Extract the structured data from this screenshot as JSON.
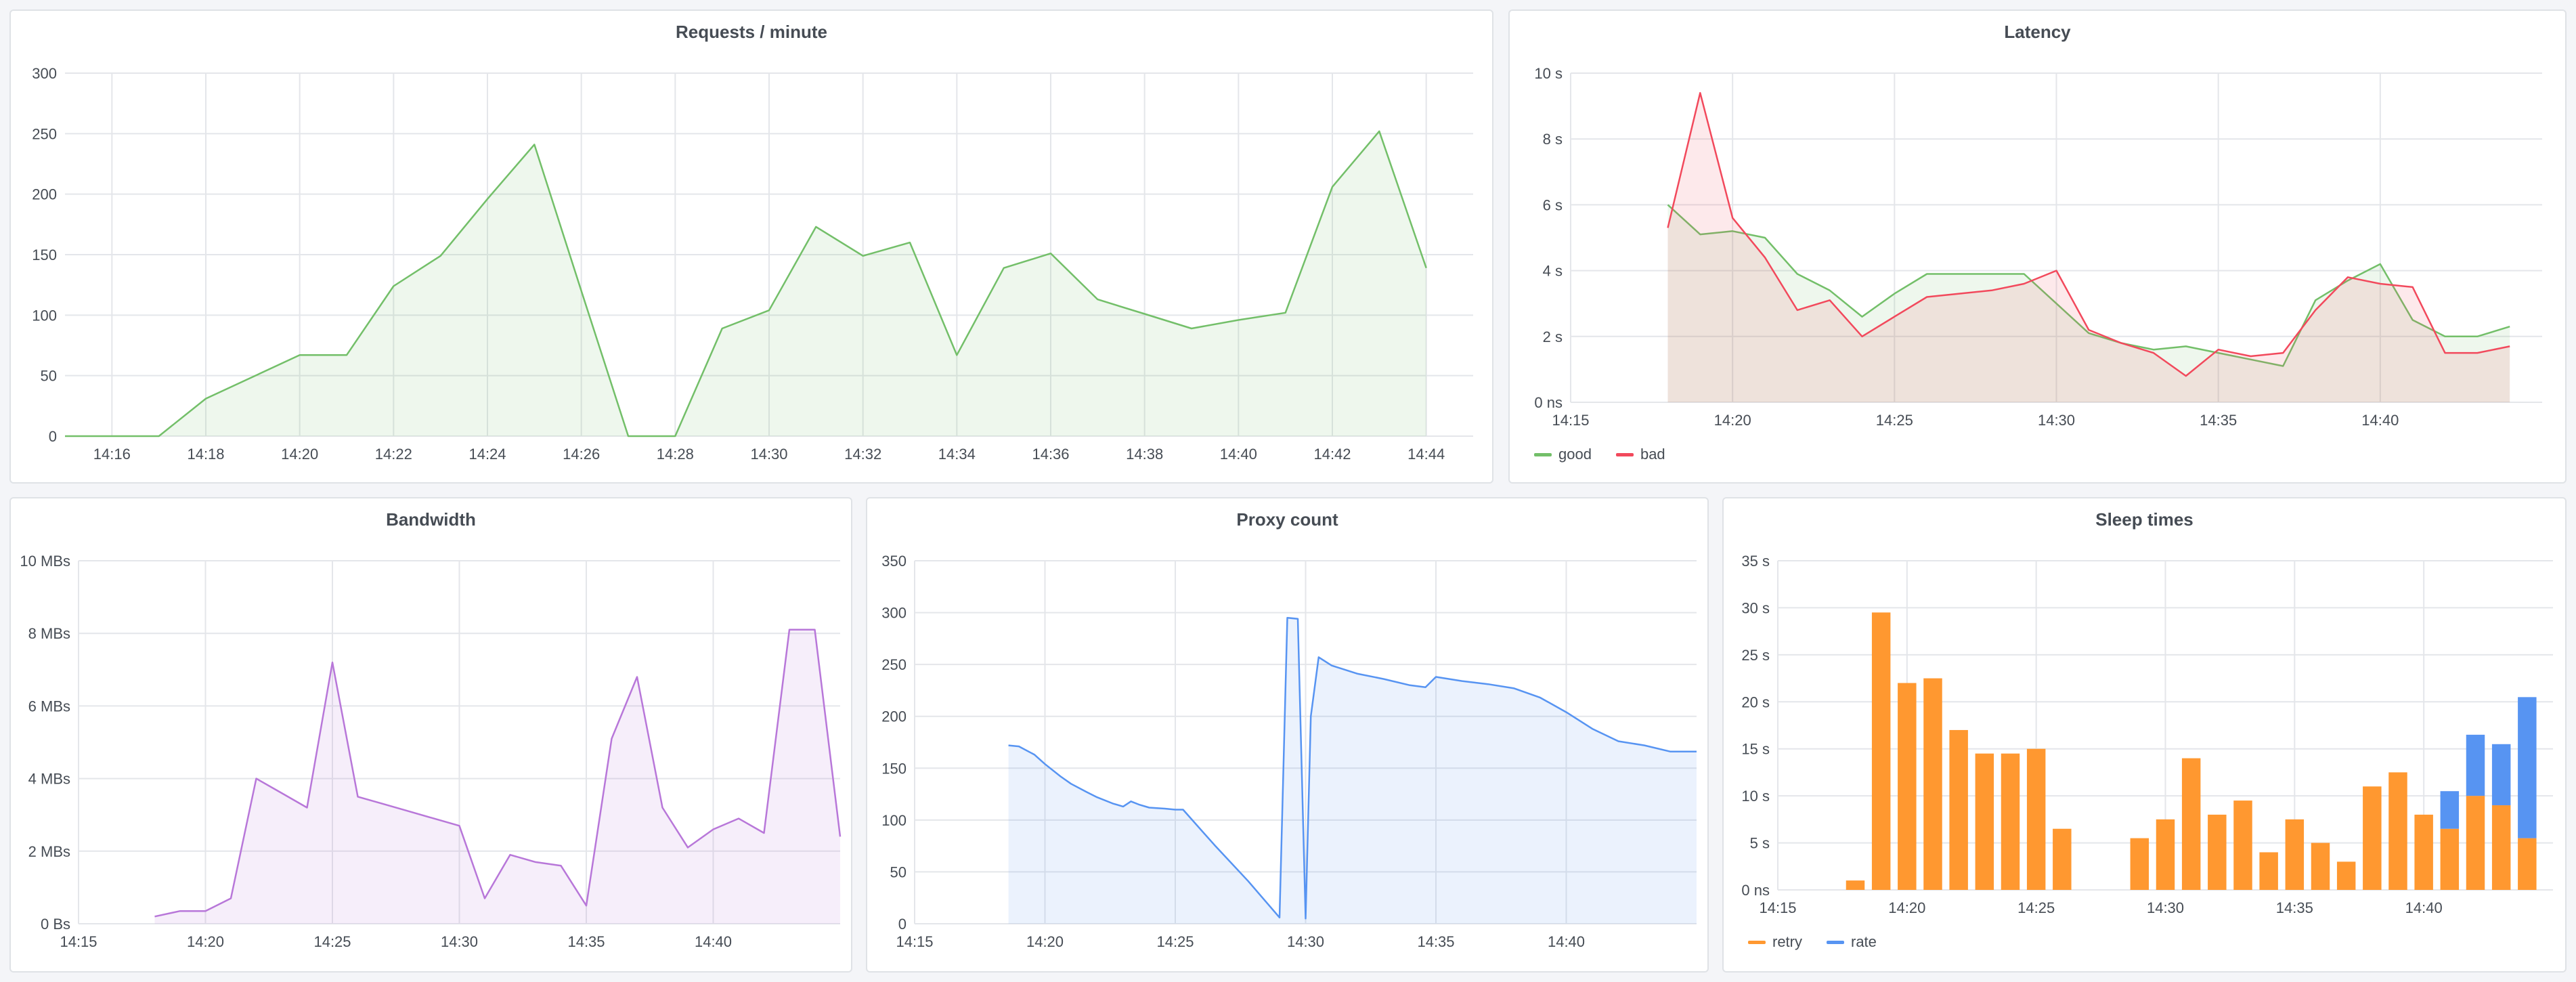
{
  "colors": {
    "green": "#73bf69",
    "red": "#f2495c",
    "purple": "#b877d9",
    "blue": "#5794f2",
    "orange": "#ff9830",
    "grid": "#e4e6ea",
    "axis_text": "#464c54"
  },
  "chart_data": [
    {
      "id": "requests",
      "type": "area",
      "title": "Requests / minute",
      "xlabel": "",
      "ylabel": "",
      "x_ticks": [
        "14:16",
        "14:18",
        "14:20",
        "14:22",
        "14:24",
        "14:26",
        "14:28",
        "14:30",
        "14:32",
        "14:34",
        "14:36",
        "14:38",
        "14:40",
        "14:42",
        "14:44"
      ],
      "x_range": [
        "14:15",
        "14:45"
      ],
      "y_ticks": [
        "0",
        "50",
        "100",
        "150",
        "200",
        "250",
        "300"
      ],
      "ylim": [
        0,
        300
      ],
      "grid": true,
      "series": [
        {
          "color": "green",
          "points": [
            [
              "14:15",
              0
            ],
            [
              "14:16",
              0
            ],
            [
              "14:17",
              0
            ],
            [
              "14:18",
              31
            ],
            [
              "14:19",
              49
            ],
            [
              "14:20",
              67
            ],
            [
              "14:21",
              67
            ],
            [
              "14:22",
              124
            ],
            [
              "14:23",
              149
            ],
            [
              "14:24",
              196
            ],
            [
              "14:25",
              241
            ],
            [
              "14:26",
              120
            ],
            [
              "14:27",
              0
            ],
            [
              "14:28",
              0
            ],
            [
              "14:29",
              89
            ],
            [
              "14:30",
              104
            ],
            [
              "14:31",
              173
            ],
            [
              "14:32",
              149
            ],
            [
              "14:33",
              160
            ],
            [
              "14:34",
              67
            ],
            [
              "14:35",
              139
            ],
            [
              "14:36",
              151
            ],
            [
              "14:37",
              113
            ],
            [
              "14:38",
              101
            ],
            [
              "14:39",
              89
            ],
            [
              "14:40",
              96
            ],
            [
              "14:41",
              102
            ],
            [
              "14:42",
              206
            ],
            [
              "14:43",
              252
            ],
            [
              "14:44",
              139
            ]
          ]
        }
      ]
    },
    {
      "id": "latency",
      "type": "area",
      "title": "Latency",
      "xlabel": "",
      "ylabel": "",
      "x_ticks": [
        "14:15",
        "14:20",
        "14:25",
        "14:30",
        "14:35",
        "14:40"
      ],
      "x_range": [
        "14:15",
        "14:45"
      ],
      "y_ticks": [
        "0 ns",
        "2 s",
        "4 s",
        "6 s",
        "8 s",
        "10 s"
      ],
      "ylim": [
        0,
        10
      ],
      "grid": true,
      "legend": {
        "placement": "bottom-left"
      },
      "series": [
        {
          "name": "good",
          "color": "green",
          "points": [
            [
              "14:18",
              6.0
            ],
            [
              "14:19",
              5.1
            ],
            [
              "14:20",
              5.2
            ],
            [
              "14:21",
              5.0
            ],
            [
              "14:22",
              3.9
            ],
            [
              "14:23",
              3.4
            ],
            [
              "14:24",
              2.6
            ],
            [
              "14:25",
              3.3
            ],
            [
              "14:26",
              3.9
            ],
            [
              "14:27",
              3.9
            ],
            [
              "14:28",
              3.9
            ],
            [
              "14:29",
              3.9
            ],
            [
              "14:30",
              3.0
            ],
            [
              "14:31",
              2.1
            ],
            [
              "14:32",
              1.8
            ],
            [
              "14:33",
              1.6
            ],
            [
              "14:34",
              1.7
            ],
            [
              "14:35",
              1.5
            ],
            [
              "14:36",
              1.3
            ],
            [
              "14:37",
              1.1
            ],
            [
              "14:38",
              3.1
            ],
            [
              "14:39",
              3.7
            ],
            [
              "14:40",
              4.2
            ],
            [
              "14:41",
              2.5
            ],
            [
              "14:42",
              2.0
            ],
            [
              "14:43",
              2.0
            ],
            [
              "14:44",
              2.3
            ]
          ]
        },
        {
          "name": "bad",
          "color": "red",
          "points": [
            [
              "14:18",
              5.3
            ],
            [
              "14:19",
              9.4
            ],
            [
              "14:20",
              5.6
            ],
            [
              "14:21",
              4.4
            ],
            [
              "14:22",
              2.8
            ],
            [
              "14:23",
              3.1
            ],
            [
              "14:24",
              2.0
            ],
            [
              "14:25",
              2.6
            ],
            [
              "14:26",
              3.2
            ],
            [
              "14:27",
              3.3
            ],
            [
              "14:28",
              3.4
            ],
            [
              "14:29",
              3.6
            ],
            [
              "14:30",
              4.0
            ],
            [
              "14:31",
              2.2
            ],
            [
              "14:32",
              1.8
            ],
            [
              "14:33",
              1.5
            ],
            [
              "14:34",
              0.8
            ],
            [
              "14:35",
              1.6
            ],
            [
              "14:36",
              1.4
            ],
            [
              "14:37",
              1.5
            ],
            [
              "14:38",
              2.8
            ],
            [
              "14:39",
              3.8
            ],
            [
              "14:40",
              3.6
            ],
            [
              "14:41",
              3.5
            ],
            [
              "14:42",
              1.5
            ],
            [
              "14:43",
              1.5
            ],
            [
              "14:44",
              1.7
            ]
          ]
        }
      ]
    },
    {
      "id": "bandwidth",
      "type": "area",
      "title": "Bandwidth",
      "xlabel": "",
      "ylabel": "",
      "x_ticks": [
        "14:15",
        "14:20",
        "14:25",
        "14:30",
        "14:35",
        "14:40"
      ],
      "x_range": [
        "14:15",
        "14:45"
      ],
      "y_ticks": [
        "0 Bs",
        "2 MBs",
        "4 MBs",
        "6 MBs",
        "8 MBs",
        "10 MBs"
      ],
      "ylim": [
        0,
        10
      ],
      "grid": true,
      "series": [
        {
          "color": "purple",
          "points": [
            [
              "14:18",
              0.2
            ],
            [
              "14:19",
              0.35
            ],
            [
              "14:20",
              0.35
            ],
            [
              "14:21",
              0.7
            ],
            [
              "14:22",
              4.0
            ],
            [
              "14:23",
              3.6
            ],
            [
              "14:24",
              3.2
            ],
            [
              "14:25",
              7.2
            ],
            [
              "14:26",
              3.5
            ],
            [
              "14:27",
              3.3
            ],
            [
              "14:28",
              3.1
            ],
            [
              "14:29",
              2.9
            ],
            [
              "14:30",
              2.7
            ],
            [
              "14:31",
              0.7
            ],
            [
              "14:32",
              1.9
            ],
            [
              "14:33",
              1.7
            ],
            [
              "14:34",
              1.6
            ],
            [
              "14:35",
              0.5
            ],
            [
              "14:36",
              5.1
            ],
            [
              "14:37",
              6.8
            ],
            [
              "14:38",
              3.2
            ],
            [
              "14:39",
              2.1
            ],
            [
              "14:40",
              2.6
            ],
            [
              "14:41",
              2.9
            ],
            [
              "14:42",
              2.5
            ],
            [
              "14:43",
              8.1
            ],
            [
              "14:44",
              8.1
            ],
            [
              "14:45",
              2.4
            ]
          ]
        }
      ]
    },
    {
      "id": "proxy",
      "type": "area",
      "title": "Proxy count",
      "xlabel": "",
      "ylabel": "",
      "x_ticks": [
        "14:15",
        "14:20",
        "14:25",
        "14:30",
        "14:35",
        "14:40"
      ],
      "x_range": [
        "14:15",
        "14:45"
      ],
      "y_ticks": [
        "0",
        "50",
        "100",
        "150",
        "200",
        "250",
        "300",
        "350"
      ],
      "ylim": [
        0,
        350
      ],
      "grid": true,
      "series": [
        {
          "color": "blue",
          "points": [
            [
              "14:18.6",
              172
            ],
            [
              "14:19.0",
              171
            ],
            [
              "14:19.6",
              163
            ],
            [
              "14:20.0",
              154
            ],
            [
              "14:20.6",
              142
            ],
            [
              "14:21.0",
              135
            ],
            [
              "14:21.6",
              127
            ],
            [
              "14:22.0",
              122
            ],
            [
              "14:22.6",
              116
            ],
            [
              "14:23.0",
              113
            ],
            [
              "14:23.3",
              118
            ],
            [
              "14:23.6",
              115
            ],
            [
              "14:24.0",
              112
            ],
            [
              "14:24.6",
              111
            ],
            [
              "14:25.0",
              110
            ],
            [
              "14:25.3",
              110
            ],
            [
              "14:26.5",
              76
            ],
            [
              "14:27.8",
              41
            ],
            [
              "14:29.0",
              6
            ],
            [
              "14:29.3",
              295
            ],
            [
              "14:29.7",
              294
            ],
            [
              "14:30.0",
              5
            ],
            [
              "14:30.2",
              200
            ],
            [
              "14:30.5",
              257
            ],
            [
              "14:31.0",
              249
            ],
            [
              "14:31.5",
              245
            ],
            [
              "14:32.0",
              241
            ],
            [
              "14:33.0",
              236
            ],
            [
              "14:34.0",
              230
            ],
            [
              "14:34.6",
              228
            ],
            [
              "14:35.0",
              238
            ],
            [
              "14:36.0",
              234
            ],
            [
              "14:37.0",
              231
            ],
            [
              "14:38.0",
              227
            ],
            [
              "14:39.0",
              218
            ],
            [
              "14:40.0",
              204
            ],
            [
              "14:41.0",
              188
            ],
            [
              "14:42.0",
              176
            ],
            [
              "14:43.0",
              172
            ],
            [
              "14:44.0",
              166
            ],
            [
              "14:45.0",
              166
            ]
          ]
        }
      ]
    },
    {
      "id": "sleep",
      "type": "bar",
      "title": "Sleep times",
      "xlabel": "",
      "ylabel": "",
      "x_ticks": [
        "14:15",
        "14:20",
        "14:25",
        "14:30",
        "14:35",
        "14:40"
      ],
      "x_range": [
        "14:15",
        "14:45"
      ],
      "y_ticks": [
        "0 ns",
        "5 s",
        "10 s",
        "15 s",
        "20 s",
        "25 s",
        "30 s",
        "35 s"
      ],
      "ylim": [
        0,
        35
      ],
      "grid": true,
      "stacked": true,
      "legend": {
        "placement": "bottom-left"
      },
      "categories": [
        "14:18",
        "14:19",
        "14:20",
        "14:21",
        "14:22",
        "14:23",
        "14:24",
        "14:25",
        "14:26",
        "14:29",
        "14:30",
        "14:31",
        "14:32",
        "14:33",
        "14:34",
        "14:35",
        "14:36",
        "14:37",
        "14:38",
        "14:39",
        "14:40",
        "14:41",
        "14:42",
        "14:43",
        "14:44"
      ],
      "series": [
        {
          "name": "retry",
          "color": "orange",
          "values": [
            1.0,
            29.5,
            22.0,
            22.5,
            17.0,
            14.5,
            14.5,
            15.0,
            6.5,
            5.5,
            7.5,
            14.0,
            8.0,
            9.5,
            4.0,
            7.5,
            5.0,
            3.0,
            11.0,
            12.5,
            8.0,
            6.5,
            10.0,
            9.0,
            5.5
          ]
        },
        {
          "name": "rate",
          "color": "blue",
          "values": [
            0,
            0,
            0,
            0,
            0,
            0,
            0,
            0,
            0,
            0,
            0,
            0,
            0,
            0,
            0,
            0,
            0,
            0,
            0,
            0,
            0,
            4.0,
            6.5,
            6.5,
            15.0
          ]
        }
      ]
    }
  ]
}
